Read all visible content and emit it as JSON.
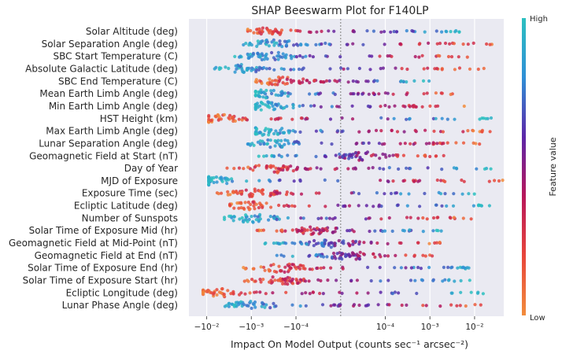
{
  "chart_data": {
    "type": "scatter",
    "subtype": "beeswarm",
    "title": "SHAP Beeswarm Plot for F140LP",
    "xlabel": "Impact On Model Output (counts sec⁻¹ arcsec⁻²)",
    "x_scale": "symlog",
    "xlim": [
      -0.025,
      0.045
    ],
    "x_ticks": [
      {
        "value": -0.01,
        "label": "−10⁻²"
      },
      {
        "value": -0.001,
        "label": "−10⁻³"
      },
      {
        "value": -0.0001,
        "label": "−10⁻⁴"
      },
      {
        "value": 0.0001,
        "label": "10⁻⁴"
      },
      {
        "value": 0.001,
        "label": "10⁻³"
      },
      {
        "value": 0.01,
        "label": "10⁻²"
      }
    ],
    "grid": true,
    "features": [
      {
        "name": "Solar Altitude (deg)",
        "range": [
          -0.0012,
          0.005
        ],
        "center": -0.0005,
        "hi_side": 1
      },
      {
        "name": "Solar Separation Angle (deg)",
        "range": [
          -0.0015,
          0.025
        ],
        "center": -0.0003,
        "hi_side": -1
      },
      {
        "name": "SBC Start Temperature (C)",
        "range": [
          -0.003,
          0.01
        ],
        "center": -0.0004,
        "hi_side": -1
      },
      {
        "name": "Absolute Galactic Latitude (deg)",
        "range": [
          -0.007,
          0.025
        ],
        "center": -0.0015,
        "hi_side": -1
      },
      {
        "name": "SBC End Temperature (C)",
        "range": [
          -0.0008,
          0.0015
        ],
        "center": -0.0002,
        "hi_side": 1
      },
      {
        "name": "Mean Earth Limb Angle (deg)",
        "range": [
          -0.0008,
          0.0062
        ],
        "center": -0.0004,
        "hi_side": -1
      },
      {
        "name": "Min Earth Limb Angle (deg)",
        "range": [
          -0.0008,
          0.006
        ],
        "center": -0.0004,
        "hi_side": -1
      },
      {
        "name": "HST Height (km)",
        "range": [
          -0.009,
          0.025
        ],
        "center": -0.006,
        "hi_side": 1
      },
      {
        "name": "Max Earth Limb Angle (deg)",
        "range": [
          -0.0008,
          0.025
        ],
        "center": -0.0005,
        "hi_side": -1
      },
      {
        "name": "Lunar Separation Angle (deg)",
        "range": [
          -0.0012,
          0.025
        ],
        "center": -0.0003,
        "hi_side": -1
      },
      {
        "name": "Geomagnetic Field at Start (nT)",
        "range": [
          -0.0007,
          0.003
        ],
        "center": 5e-05,
        "hi_side": -1
      },
      {
        "name": "Day of Year",
        "range": [
          -0.005,
          0.025
        ],
        "center": -0.0003,
        "hi_side": 1
      },
      {
        "name": "MJD of Exposure",
        "range": [
          -0.009,
          0.045
        ],
        "center": -0.008,
        "hi_side": -1
      },
      {
        "name": "Exposure Time (sec)",
        "range": [
          -0.006,
          0.01
        ],
        "center": -0.0008,
        "hi_side": 1
      },
      {
        "name": "Ecliptic Latitude (deg)",
        "range": [
          -0.003,
          0.025
        ],
        "center": -0.001,
        "hi_side": 1
      },
      {
        "name": "Number of Sunspots",
        "range": [
          -0.004,
          0.012
        ],
        "center": -0.001,
        "hi_side": -1
      },
      {
        "name": "Solar Time of Exposure Mid (hr)",
        "range": [
          -0.0009,
          0.002
        ],
        "center": -5e-05,
        "hi_side": 1
      },
      {
        "name": "Geomagnetic Field at Mid-Point (nT)",
        "range": [
          -0.0005,
          0.002
        ],
        "center": -2e-05,
        "hi_side": -1
      },
      {
        "name": "Geomagnetic Field at End (nT)",
        "range": [
          -0.0005,
          0.0015
        ],
        "center": 2e-05,
        "hi_side": -1
      },
      {
        "name": "Solar Time of Exposure End (hr)",
        "range": [
          -0.0015,
          0.012
        ],
        "center": -0.0002,
        "hi_side": 1
      },
      {
        "name": "Solar Time of Exposure Start (hr)",
        "range": [
          -0.002,
          0.01
        ],
        "center": -0.0002,
        "hi_side": 1
      },
      {
        "name": "Ecliptic Longitude (deg)",
        "range": [
          -0.012,
          0.03
        ],
        "center": -0.006,
        "hi_side": 1
      },
      {
        "name": "Lunar Phase Angle (deg)",
        "range": [
          -0.005,
          0.025
        ],
        "center": -0.001,
        "hi_side": -1
      }
    ],
    "colorbar": {
      "label": "Feature value",
      "high_label": "High",
      "low_label": "Low",
      "colors": [
        "#f28c3c",
        "#e8463b",
        "#b8175a",
        "#5c26a8",
        "#2f8fd6",
        "#2cc0c0"
      ]
    },
    "zero_line": true
  }
}
